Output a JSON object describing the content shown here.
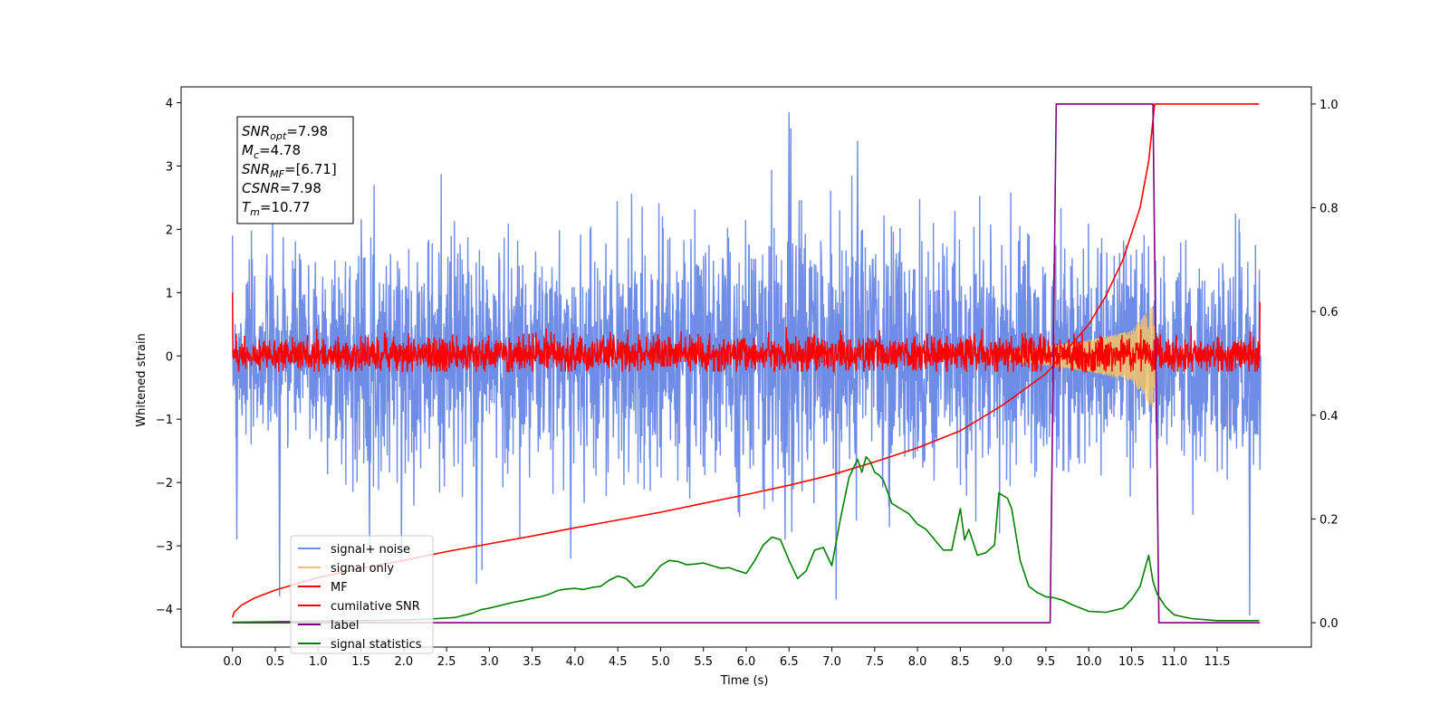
{
  "chart_data": {
    "type": "line",
    "title": "",
    "xlabel": "Time (s)",
    "ylabel": "Whitened strain",
    "ylabel_right": "",
    "xlim": [
      -0.6,
      12.6
    ],
    "ylim": [
      -4.6,
      4.25
    ],
    "ylim_right": [
      -0.047,
      1.033
    ],
    "x_ticks": [
      0.0,
      0.5,
      1.0,
      1.5,
      2.0,
      2.5,
      3.0,
      3.5,
      4.0,
      4.5,
      5.0,
      5.5,
      6.0,
      6.5,
      7.0,
      7.5,
      8.0,
      8.5,
      9.0,
      9.5,
      10.0,
      10.5,
      11.0,
      11.5
    ],
    "x_tick_labels": [
      "0.0",
      "0.5",
      "1.0",
      "1.5",
      "2.0",
      "2.5",
      "3.0",
      "3.5",
      "4.0",
      "4.5",
      "5.0",
      "5.5",
      "6.0",
      "6.5",
      "7.0",
      "7.5",
      "8.0",
      "8.5",
      "9.0",
      "9.5",
      "10.0",
      "10.5",
      "11.0",
      "11.5"
    ],
    "y_ticks": [
      4,
      3,
      2,
      1,
      0,
      -1,
      -2,
      -3,
      -4
    ],
    "y_tick_labels": [
      "4",
      "3",
      "2",
      "1",
      "0",
      "−1",
      "−2",
      "−3",
      "−4"
    ],
    "y_right_ticks": [
      1.0,
      0.8,
      0.6,
      0.4,
      0.2,
      0.0
    ],
    "y_right_tick_labels": [
      "1.0",
      "0.8",
      "0.6",
      "0.4",
      "0.2",
      "0.0"
    ],
    "legend_position": "lower-left",
    "grid": false,
    "annotation": {
      "lines": [
        {
          "base": "SNR",
          "sub": "opt",
          "value": "=7.98"
        },
        {
          "base": "M",
          "sub": "c",
          "value": "=4.78"
        },
        {
          "base": "SNR",
          "sub": "MF",
          "value": "=[6.71]"
        },
        {
          "base": "CSNR",
          "sub": "",
          "value": "=7.98"
        },
        {
          "base": "T",
          "sub": "m",
          "value": "=10.77"
        }
      ]
    },
    "series": [
      {
        "name": "signal+ noise",
        "axis": "left",
        "color": "#6f8ce6",
        "style": "noise",
        "x_range": [
          0.0,
          12.0
        ],
        "envelope": [
          [
            0.0,
            1.9
          ],
          [
            0.5,
            2.3
          ],
          [
            1.0,
            2.5
          ],
          [
            1.5,
            2.7
          ],
          [
            2.0,
            2.7
          ],
          [
            2.5,
            2.9
          ],
          [
            3.0,
            2.8
          ],
          [
            4.0,
            2.7
          ],
          [
            5.0,
            2.8
          ],
          [
            6.0,
            2.9
          ],
          [
            6.5,
            3.85
          ],
          [
            7.0,
            2.9
          ],
          [
            8.0,
            2.8
          ],
          [
            9.0,
            2.7
          ],
          [
            10.0,
            2.7
          ],
          [
            11.0,
            2.6
          ],
          [
            12.0,
            2.4
          ]
        ],
        "noted_peaks": [
          [
            0.05,
            -2.9
          ],
          [
            0.55,
            -3.8
          ],
          [
            2.85,
            -3.6
          ],
          [
            3.95,
            -3.2
          ],
          [
            6.5,
            3.85
          ],
          [
            7.05,
            -3.85
          ],
          [
            7.3,
            3.4
          ],
          [
            11.88,
            -4.1
          ],
          [
            12.0,
            -1.8
          ]
        ]
      },
      {
        "name": "signal only",
        "axis": "left",
        "color": "#f5c36b",
        "style": "chirp",
        "x_range": [
          9.0,
          10.8
        ],
        "amplitude": [
          [
            9.0,
            0.05
          ],
          [
            9.5,
            0.15
          ],
          [
            10.0,
            0.25
          ],
          [
            10.5,
            0.4
          ],
          [
            10.77,
            0.85
          ],
          [
            10.8,
            0.0
          ]
        ]
      },
      {
        "name": "MF",
        "axis": "left",
        "color": "#ff0000",
        "style": "noise-small",
        "x_range": [
          0.0,
          12.0
        ],
        "envelope": [
          [
            0.0,
            0.35
          ],
          [
            3.0,
            0.45
          ],
          [
            6.0,
            0.45
          ],
          [
            9.0,
            0.45
          ],
          [
            12.0,
            0.4
          ]
        ],
        "noted_peaks": [
          [
            0.0,
            1.0
          ],
          [
            12.0,
            0.85
          ]
        ]
      },
      {
        "name": "cumilative SNR",
        "axis": "right",
        "color": "#ff0000",
        "style": "line",
        "x": [
          0.0,
          0.02,
          0.1,
          0.25,
          0.5,
          1.0,
          1.5,
          2.0,
          2.5,
          3.0,
          3.5,
          4.0,
          4.5,
          5.0,
          5.5,
          6.0,
          6.5,
          7.0,
          7.5,
          8.0,
          8.5,
          9.0,
          9.5,
          10.0,
          10.2,
          10.4,
          10.6,
          10.7,
          10.77,
          10.78,
          11.0,
          11.5,
          11.99
        ],
        "y": [
          0.01,
          0.02,
          0.033,
          0.047,
          0.063,
          0.087,
          0.105,
          0.12,
          0.137,
          0.152,
          0.167,
          0.183,
          0.198,
          0.213,
          0.23,
          0.247,
          0.265,
          0.285,
          0.31,
          0.337,
          0.37,
          0.42,
          0.48,
          0.575,
          0.63,
          0.7,
          0.8,
          0.89,
          1.0,
          1.0,
          1.0,
          1.0,
          1.0
        ]
      },
      {
        "name": "label",
        "axis": "right",
        "color": "#800080",
        "style": "line",
        "x": [
          0.0,
          9.55,
          9.62,
          10.75,
          10.82,
          12.0
        ],
        "y": [
          0.0,
          0.0,
          1.0,
          1.0,
          0.0,
          0.0
        ]
      },
      {
        "name": "signal statistics",
        "axis": "right",
        "color": "#008000",
        "style": "line",
        "x": [
          0.0,
          0.5,
          1.0,
          1.5,
          2.0,
          2.3,
          2.6,
          2.8,
          2.9,
          3.0,
          3.1,
          3.2,
          3.3,
          3.4,
          3.5,
          3.6,
          3.7,
          3.8,
          3.9,
          4.0,
          4.1,
          4.2,
          4.3,
          4.4,
          4.5,
          4.6,
          4.7,
          4.8,
          4.9,
          5.0,
          5.1,
          5.2,
          5.3,
          5.4,
          5.5,
          5.6,
          5.7,
          5.8,
          5.9,
          6.0,
          6.1,
          6.2,
          6.3,
          6.4,
          6.5,
          6.6,
          6.7,
          6.8,
          6.9,
          7.0,
          7.1,
          7.2,
          7.3,
          7.35,
          7.4,
          7.45,
          7.5,
          7.55,
          7.6,
          7.7,
          7.8,
          7.9,
          8.0,
          8.1,
          8.2,
          8.3,
          8.4,
          8.5,
          8.55,
          8.6,
          8.7,
          8.8,
          8.9,
          8.95,
          9.0,
          9.05,
          9.1,
          9.2,
          9.3,
          9.4,
          9.5,
          9.6,
          9.7,
          9.8,
          10.0,
          10.2,
          10.4,
          10.5,
          10.6,
          10.65,
          10.7,
          10.75,
          10.8,
          10.9,
          11.0,
          11.2,
          11.5,
          11.99
        ],
        "y": [
          0.001,
          0.002,
          0.003,
          0.004,
          0.005,
          0.007,
          0.01,
          0.018,
          0.025,
          0.028,
          0.032,
          0.036,
          0.04,
          0.043,
          0.047,
          0.05,
          0.055,
          0.062,
          0.065,
          0.066,
          0.064,
          0.068,
          0.07,
          0.082,
          0.09,
          0.085,
          0.068,
          0.072,
          0.09,
          0.11,
          0.12,
          0.118,
          0.112,
          0.113,
          0.115,
          0.11,
          0.105,
          0.106,
          0.1,
          0.095,
          0.12,
          0.15,
          0.165,
          0.16,
          0.12,
          0.085,
          0.1,
          0.14,
          0.145,
          0.11,
          0.2,
          0.28,
          0.315,
          0.29,
          0.32,
          0.31,
          0.29,
          0.285,
          0.275,
          0.23,
          0.22,
          0.21,
          0.19,
          0.18,
          0.16,
          0.14,
          0.14,
          0.22,
          0.16,
          0.18,
          0.13,
          0.135,
          0.15,
          0.25,
          0.245,
          0.24,
          0.22,
          0.12,
          0.07,
          0.058,
          0.05,
          0.048,
          0.043,
          0.035,
          0.022,
          0.02,
          0.028,
          0.045,
          0.07,
          0.1,
          0.13,
          0.08,
          0.055,
          0.03,
          0.015,
          0.008,
          0.004,
          0.004
        ]
      }
    ]
  }
}
